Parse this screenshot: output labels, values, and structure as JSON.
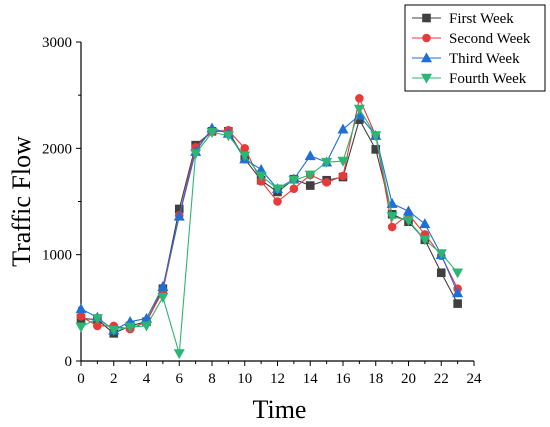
{
  "chart_data": {
    "type": "line",
    "xlabel": "Time",
    "ylabel": "Traffic Flow",
    "xlim": [
      0,
      24
    ],
    "ylim": [
      0,
      3000
    ],
    "xticks": [
      0,
      2,
      4,
      6,
      8,
      10,
      12,
      14,
      16,
      18,
      20,
      22,
      24
    ],
    "yticks": [
      0,
      1000,
      2000,
      3000
    ],
    "x": [
      0,
      1,
      2,
      3,
      4,
      5,
      6,
      7,
      8,
      9,
      10,
      11,
      12,
      13,
      14,
      15,
      16,
      17,
      18,
      19,
      20,
      21,
      22,
      23
    ],
    "grid": false,
    "legend_position": "top-right",
    "series": [
      {
        "name": "First Week",
        "color": "#404040",
        "marker": "square",
        "values": [
          400,
          390,
          260,
          330,
          370,
          680,
          1430,
          2030,
          2160,
          2160,
          1900,
          1700,
          1590,
          1710,
          1650,
          1700,
          1730,
          2270,
          1990,
          1380,
          1310,
          1140,
          830,
          540
        ]
      },
      {
        "name": "Second Week",
        "color": "#e83a3a",
        "marker": "circle",
        "values": [
          420,
          330,
          330,
          300,
          370,
          660,
          1370,
          2010,
          2160,
          2170,
          2000,
          1690,
          1500,
          1620,
          1750,
          1680,
          1740,
          2470,
          2120,
          1260,
          1380,
          1190,
          990,
          680
        ]
      },
      {
        "name": "Third Week",
        "color": "#1f6fd9",
        "marker": "triangle-up",
        "values": [
          490,
          410,
          290,
          370,
          400,
          700,
          1360,
          1970,
          2190,
          2140,
          1900,
          1800,
          1620,
          1710,
          1930,
          1870,
          2180,
          2310,
          2120,
          1480,
          1410,
          1290,
          1000,
          640
        ]
      },
      {
        "name": "Fourth Week",
        "color": "#2bb673",
        "marker": "triangle-down",
        "values": [
          320,
          400,
          290,
          320,
          330,
          600,
          70,
          1950,
          2150,
          2120,
          1930,
          1740,
          1620,
          1700,
          1750,
          1870,
          1880,
          2370,
          2120,
          1360,
          1320,
          1140,
          1010,
          830
        ]
      }
    ]
  }
}
